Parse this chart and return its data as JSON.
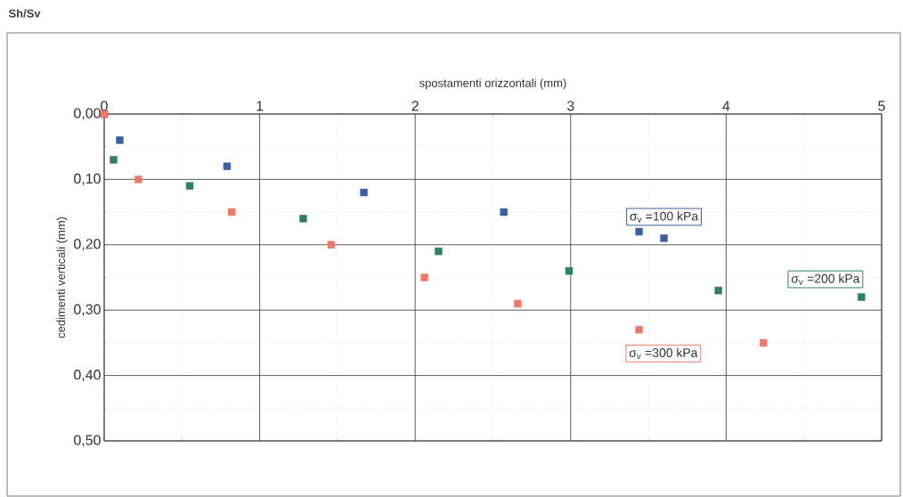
{
  "chart_data": {
    "type": "scatter",
    "title": "Sh/Sv",
    "xlabel": "spostamenti orizzontali (mm)",
    "ylabel": "cedimenti verticali (mm)",
    "xlim": [
      0,
      5
    ],
    "xticks": [
      0,
      1,
      2,
      3,
      4,
      5
    ],
    "ylim": [
      0.5,
      0
    ],
    "yticks": [
      {
        "value": 0,
        "label": "0,00"
      },
      {
        "value": 0.1,
        "label": "0,10"
      },
      {
        "value": 0.2,
        "label": "0,20"
      },
      {
        "value": 0.3,
        "label": "0,30"
      },
      {
        "value": 0.4,
        "label": "0,40"
      },
      {
        "value": 0.5,
        "label": "0,50"
      }
    ],
    "grid": true,
    "marker": "square",
    "series": [
      {
        "name": "σ$_{v}$ =100 kPa",
        "color": "#3a5fa0",
        "x": [
          0,
          0.1,
          0.79,
          1.67,
          2.57,
          3.44,
          3.6
        ],
        "values": [
          0,
          0.04,
          0.08,
          0.12,
          0.15,
          0.18,
          0.19
        ]
      },
      {
        "name": "σ$_{v}$ =200 kPa",
        "color": "#2e8060",
        "x": [
          0,
          0.06,
          0.55,
          1.28,
          2.15,
          2.99,
          3.95,
          4.87
        ],
        "values": [
          0,
          0.07,
          0.11,
          0.16,
          0.21,
          0.24,
          0.27,
          0.28
        ]
      },
      {
        "name": "σ$_{v}$ =300 kPa",
        "color": "#f07868",
        "x": [
          0,
          0.22,
          0.82,
          1.46,
          2.06,
          2.66,
          3.44,
          4.24
        ],
        "values": [
          0,
          0.1,
          0.15,
          0.2,
          0.25,
          0.29,
          0.33,
          0.35
        ]
      }
    ]
  }
}
